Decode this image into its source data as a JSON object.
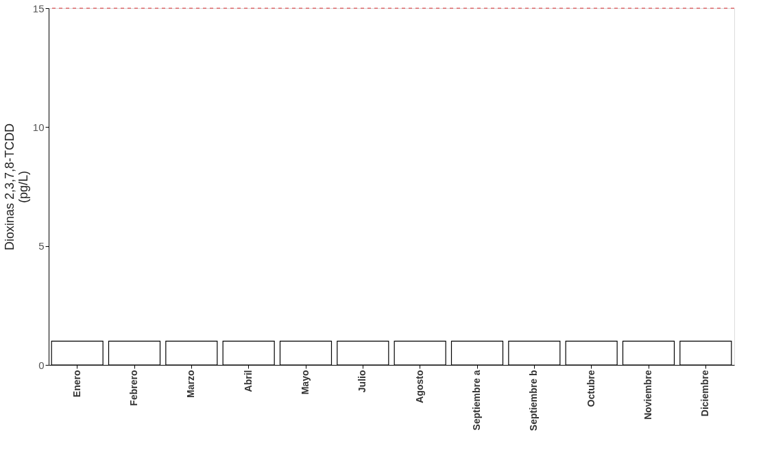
{
  "chart_data": {
    "type": "bar",
    "ylabel": "Dioxinas 2,3,7,8-TCDD\n(pg/L)",
    "categories": [
      "Enero",
      "Febrero",
      "Marzo",
      "Abril",
      "Mayo",
      "Julio",
      "Agosto",
      "Septiembre a",
      "Septiembre b",
      "Octubre",
      "Noviembre",
      "Diciembre"
    ],
    "values": [
      1,
      1,
      1,
      1,
      1,
      1,
      1,
      1,
      1,
      1,
      1,
      1
    ],
    "color": "#ffffff",
    "ylim": [
      0,
      15
    ],
    "yticks": [
      0,
      5,
      10,
      15
    ],
    "ref_lines": [
      {
        "axis": "y",
        "value": 15,
        "color": "#d62728",
        "line_style": "dashed"
      }
    ],
    "grid": false
  }
}
